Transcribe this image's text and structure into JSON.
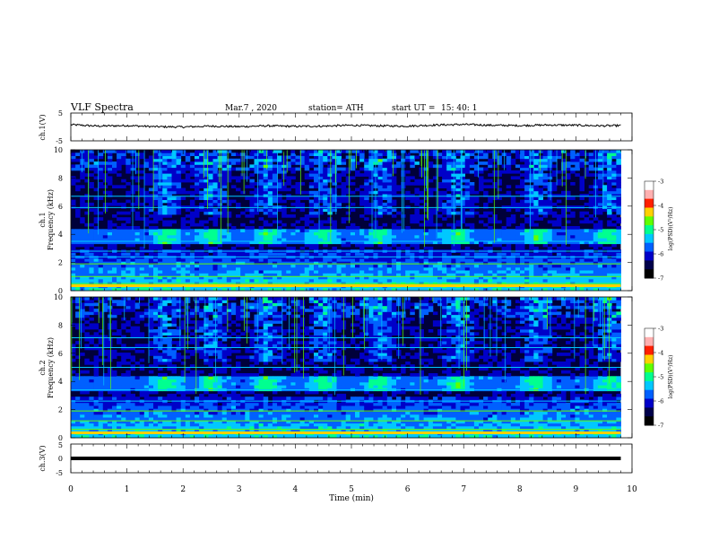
{
  "header": {
    "title": "VLF  Spectra",
    "date": "Mar.7  , 2020",
    "station": "station= ATH",
    "start_label": "start  UT  =",
    "start_time": "15: 40: 1"
  },
  "colors": {
    "trace": "#000000",
    "background": "#ffffff",
    "colormap": [
      "#000000",
      "#00004a",
      "#0000c8",
      "#0060ff",
      "#00c8ff",
      "#00ff90",
      "#60ff00",
      "#ffd000",
      "#ff2000",
      "#ffb0b0",
      "#ffffff"
    ]
  },
  "chart_data": [
    {
      "type": "line",
      "name": "ch1-voltage",
      "ylabel": "ch.1(V)",
      "ylim": [
        -5,
        5
      ],
      "yticks": [
        "5",
        "-5"
      ],
      "xlim": [
        0,
        10
      ],
      "x": [
        0,
        0.5,
        1,
        1.5,
        2,
        2.5,
        3,
        3.5,
        4,
        4.5,
        5,
        5.5,
        6,
        6.5,
        7,
        7.5,
        8,
        8.5,
        9,
        9.5,
        9.8
      ],
      "values": [
        0.8,
        0.3,
        0.5,
        0.1,
        0.0,
        0.3,
        0.1,
        0.4,
        0.2,
        0.3,
        0.6,
        0.4,
        0.3,
        0.7,
        0.9,
        0.6,
        0.5,
        0.7,
        0.6,
        0.4,
        0.5
      ]
    },
    {
      "type": "heatmap",
      "name": "ch1-spectrogram",
      "ylabel_top": "ch.1",
      "ylabel": "Frequency  (kHz)",
      "yticks": [
        "0",
        "2",
        "4",
        "6",
        "8",
        "10"
      ],
      "ylim": [
        0,
        10
      ],
      "xlim": [
        0,
        10
      ],
      "colorbar": {
        "label": "log(PSD)(V²/Hz)",
        "ticks": [
          "-3",
          "-4",
          "-5",
          "-6",
          "-7"
        ],
        "range": [
          -7,
          -3
        ]
      },
      "tone_bands_khz": [
        0.5,
        1.0,
        1.9,
        2.4,
        2.8,
        3.5,
        5.9,
        6.7
      ],
      "bursts_min": [
        1.7,
        2.5,
        3.5,
        4.5,
        5.5,
        6.9,
        8.3,
        9.6
      ]
    },
    {
      "type": "heatmap",
      "name": "ch2-spectrogram",
      "ylabel_top": "ch.2",
      "ylabel": "Frequency  (kHz)",
      "yticks": [
        "0",
        "2",
        "4",
        "6",
        "8",
        "10"
      ],
      "ylim": [
        0,
        10
      ],
      "xlim": [
        0,
        10
      ],
      "colorbar": {
        "label": "log(PSD)(V²/Hz)",
        "ticks": [
          "-3",
          "-4",
          "-5",
          "-6",
          "-7"
        ],
        "range": [
          -7,
          -3
        ]
      },
      "tone_bands_khz": [
        0.6,
        1.2,
        1.9,
        2.6,
        3.4,
        5.0,
        6.4,
        7.1
      ],
      "bursts_min": [
        1.7,
        2.5,
        3.5,
        4.5,
        5.5,
        6.9,
        8.3,
        9.6
      ]
    },
    {
      "type": "line",
      "name": "ch3-voltage",
      "ylabel": "ch.3(V)",
      "ylim": [
        -5,
        5
      ],
      "yticks": [
        "5",
        "0",
        "-5"
      ],
      "xlim": [
        0,
        10
      ],
      "x": [
        0,
        9.8
      ],
      "values": [
        0,
        0
      ]
    }
  ],
  "xaxis": {
    "label": "Time  (min)",
    "ticks": [
      "0",
      "1",
      "2",
      "3",
      "4",
      "5",
      "6",
      "7",
      "8",
      "9",
      "10"
    ]
  }
}
